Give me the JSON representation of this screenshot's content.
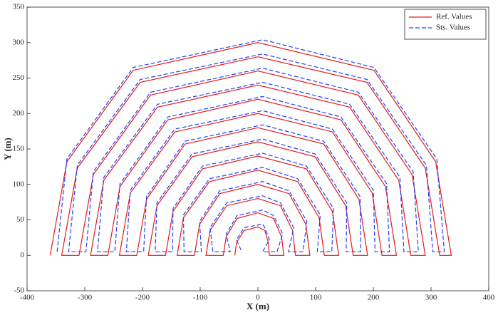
{
  "chart_data": {
    "type": "line",
    "xlabel": "X (m)",
    "ylabel": "Y (m)",
    "xlim": [
      -400,
      400
    ],
    "xticks": [
      -400,
      -300,
      -200,
      -100,
      0,
      100,
      200,
      300,
      400
    ],
    "ylim": [
      -50,
      350
    ],
    "yticks": [
      -50,
      0,
      50,
      100,
      150,
      200,
      250,
      300,
      350
    ],
    "legend": "upper right",
    "series": [
      {
        "name": "Ref. Values",
        "color": "#e41a1c",
        "linestyle": "solid",
        "x": [
          -360,
          -331,
          -216,
          0,
          201,
          308,
          335,
          315,
          290,
          189,
          0,
          -204,
          -313,
          -340,
          -310,
          -285,
          -186,
          0,
          174,
          267,
          290,
          265,
          244,
          159,
          0,
          -174,
          -267,
          -290,
          -260,
          -239,
          -156,
          0,
          144,
          221,
          240,
          215,
          198,
          129,
          0,
          -144,
          -221,
          -240,
          -210,
          -193,
          -126,
          0,
          114,
          175,
          190,
          165,
          152,
          99,
          0,
          -114,
          -175,
          -190,
          -160,
          -147,
          -96,
          0,
          84,
          129,
          140,
          115,
          106,
          69,
          0,
          -84,
          -129,
          -140,
          -110,
          -101,
          -66,
          0,
          54,
          83,
          90,
          65,
          60,
          39,
          0,
          -54,
          -83,
          -90,
          -60,
          -55,
          -36,
          0,
          27,
          41,
          45,
          20,
          18,
          12,
          0,
          -24,
          -37,
          -40
        ],
        "values": [
          0,
          132,
          261,
          300,
          261,
          132,
          0,
          0,
          123,
          244,
          280,
          244,
          123,
          0,
          0,
          114,
          226,
          260,
          226,
          114,
          0,
          0,
          106,
          209,
          240,
          209,
          106,
          0,
          0,
          97,
          191,
          220,
          191,
          97,
          0,
          0,
          88,
          174,
          200,
          174,
          88,
          0,
          0,
          79,
          157,
          180,
          157,
          79,
          0,
          0,
          70,
          139,
          160,
          139,
          70,
          0,
          0,
          62,
          122,
          140,
          122,
          62,
          0,
          0,
          53,
          104,
          120,
          104,
          53,
          0,
          0,
          44,
          87,
          100,
          87,
          44,
          0,
          0,
          35,
          70,
          80,
          70,
          35,
          0,
          0,
          26,
          52,
          60,
          52,
          26,
          0,
          0,
          18,
          35,
          40,
          35,
          18,
          0
        ]
      },
      {
        "name": "Sts. Values",
        "color": "#1f3fff",
        "linestyle": "dashed",
        "x": [
          -348,
          -331,
          -216,
          8,
          201,
          310,
          323,
          303,
          292,
          189,
          8,
          -204,
          -313,
          -328,
          -298,
          -285,
          -186,
          8,
          174,
          269,
          278,
          253,
          246,
          159,
          8,
          -174,
          -267,
          -278,
          -248,
          -239,
          -156,
          8,
          144,
          223,
          228,
          203,
          200,
          129,
          8,
          -144,
          -221,
          -228,
          -198,
          -193,
          -126,
          8,
          114,
          177,
          178,
          153,
          154,
          99,
          8,
          -114,
          -175,
          -178,
          -148,
          -147,
          -96,
          8,
          84,
          131,
          128,
          103,
          108,
          69,
          8,
          -84,
          -129,
          -128,
          -98,
          -101,
          -66,
          8,
          54,
          85,
          78,
          53,
          62,
          39,
          8,
          -54,
          -83,
          -78,
          -48,
          -55,
          -36,
          8,
          27,
          43,
          33,
          8,
          20,
          12,
          8,
          -24,
          -37,
          -28
        ],
        "values": [
          5,
          136,
          265,
          304,
          265,
          136,
          5,
          5,
          127,
          248,
          284,
          248,
          127,
          5,
          5,
          118,
          230,
          264,
          230,
          118,
          5,
          5,
          110,
          213,
          244,
          213,
          110,
          5,
          5,
          101,
          195,
          224,
          195,
          101,
          5,
          5,
          92,
          178,
          204,
          178,
          92,
          5,
          5,
          83,
          161,
          184,
          161,
          83,
          5,
          5,
          74,
          143,
          164,
          143,
          74,
          5,
          5,
          66,
          126,
          144,
          126,
          66,
          5,
          5,
          57,
          108,
          124,
          108,
          57,
          5,
          5,
          48,
          91,
          104,
          91,
          48,
          5,
          5,
          39,
          74,
          84,
          74,
          39,
          5,
          5,
          30,
          56,
          64,
          56,
          30,
          5,
          5,
          22,
          39,
          44,
          39,
          22,
          5
        ]
      }
    ]
  }
}
